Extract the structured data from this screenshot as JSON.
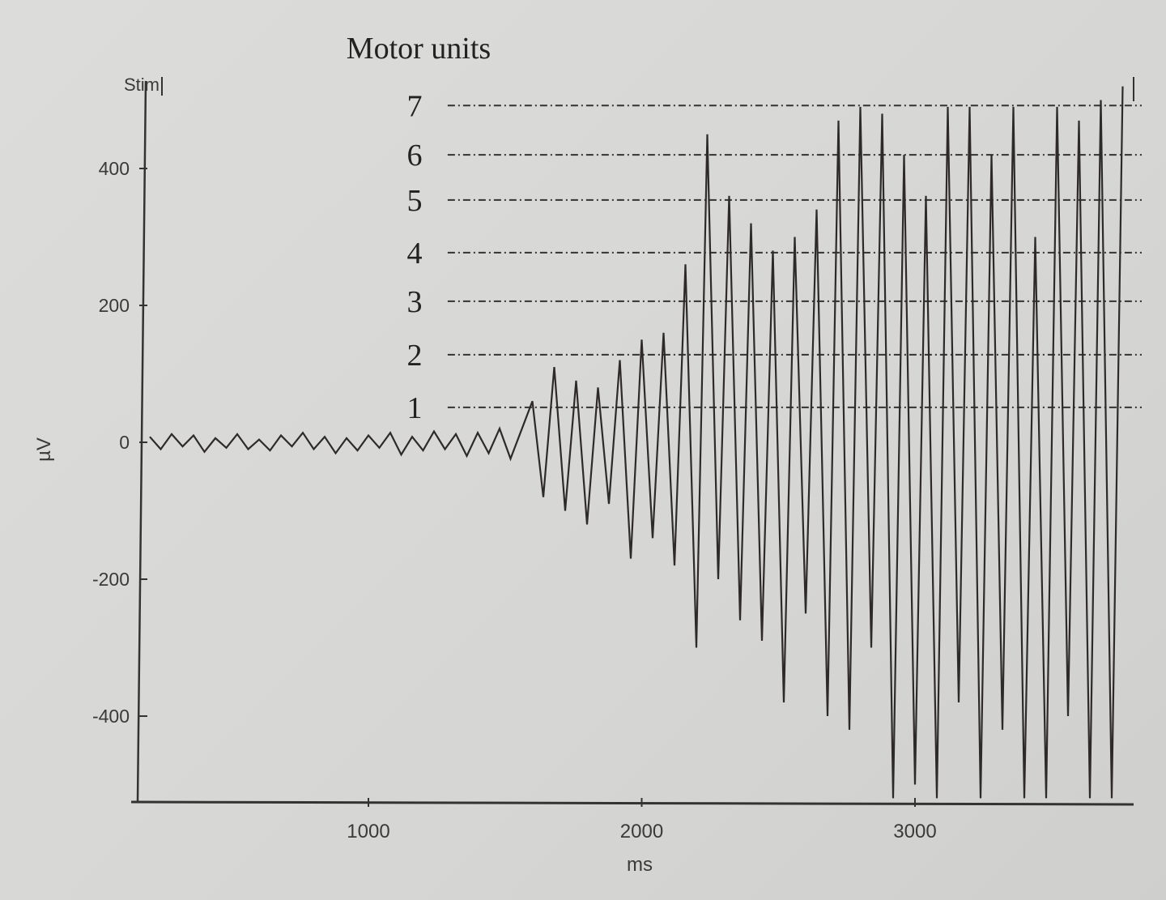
{
  "chart_data": {
    "type": "line",
    "title": "Motor units",
    "xlabel": "ms",
    "ylabel": "µV",
    "stim_label": "Stim",
    "xlim": [
      130,
      3800
    ],
    "ylim": [
      -525,
      520
    ],
    "x_ticks": [
      1000,
      2000,
      3000
    ],
    "x_tick_labels": [
      "1000",
      "2000",
      "3000"
    ],
    "y_ticks": [
      400,
      200,
      0,
      -200,
      -400
    ],
    "y_tick_labels": [
      "400",
      "200",
      "0",
      "-200",
      "-400"
    ],
    "grid": false,
    "line_color": "#2e2a2a",
    "motor_unit_levels": [
      {
        "label": "1",
        "value": 51
      },
      {
        "label": "2",
        "value": 128
      },
      {
        "label": "3",
        "value": 206
      },
      {
        "label": "4",
        "value": 277
      },
      {
        "label": "5",
        "value": 354
      },
      {
        "label": "6",
        "value": 420
      },
      {
        "label": "7",
        "value": 492
      }
    ],
    "motor_unit_line_start": 1290,
    "series": [
      {
        "x": [
          200,
          240,
          280,
          320,
          360,
          400,
          440,
          480,
          520,
          560,
          600,
          640,
          680,
          720,
          760,
          800,
          840,
          880,
          920,
          960,
          1000,
          1040,
          1080,
          1120,
          1160,
          1200,
          1240,
          1280,
          1320,
          1360,
          1400,
          1440,
          1480,
          1520,
          1560,
          1600,
          1640,
          1680,
          1720,
          1760,
          1800,
          1840,
          1880,
          1920,
          1960,
          2000,
          2040,
          2080,
          2120,
          2160,
          2200,
          2240,
          2280,
          2320,
          2360,
          2400,
          2440,
          2480,
          2520,
          2560,
          2600,
          2640,
          2680,
          2720,
          2760,
          2800,
          2840,
          2880,
          2920,
          2960,
          3000,
          3040,
          3080,
          3120,
          3160,
          3200,
          3240,
          3280,
          3320,
          3360,
          3400,
          3440,
          3480,
          3520,
          3560,
          3600,
          3640,
          3680,
          3720,
          3760
        ],
        "y": [
          8,
          -10,
          12,
          -6,
          10,
          -14,
          6,
          -8,
          12,
          -10,
          4,
          -12,
          10,
          -6,
          14,
          -10,
          8,
          -16,
          6,
          -12,
          10,
          -8,
          14,
          -18,
          8,
          -12,
          16,
          -10,
          12,
          -20,
          14,
          -16,
          20,
          -24,
          18,
          60,
          -80,
          110,
          -100,
          90,
          -120,
          80,
          -90,
          120,
          -170,
          150,
          -140,
          160,
          -180,
          260,
          -300,
          450,
          -200,
          360,
          -260,
          320,
          -290,
          280,
          -380,
          300,
          -250,
          340,
          -400,
          470,
          -420,
          490,
          -300,
          480,
          -520,
          420,
          -500,
          360,
          -520,
          490,
          -380,
          490,
          -520,
          420,
          -420,
          490,
          -520,
          300,
          -520,
          490,
          -400,
          470,
          -520,
          500,
          -520,
          520
        ]
      }
    ]
  }
}
